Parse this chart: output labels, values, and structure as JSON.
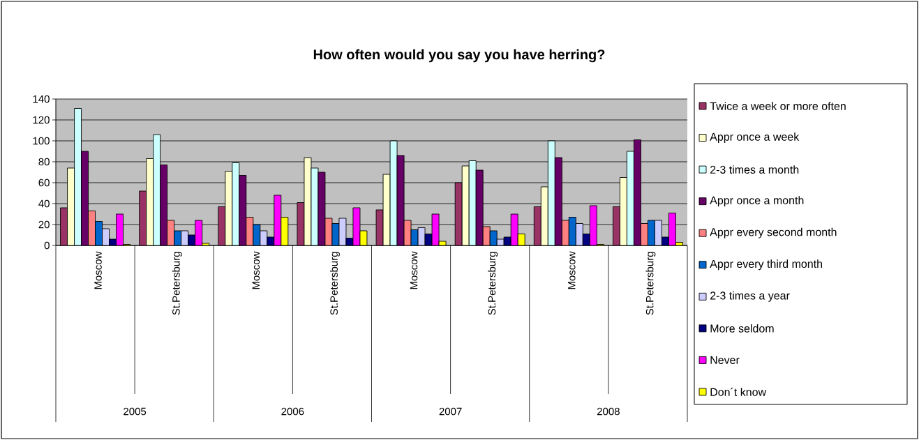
{
  "chart_data": {
    "type": "bar",
    "title": "How often would you say you have herring?",
    "categories": [
      "Moscow",
      "St.Petersburg",
      "Moscow",
      "St.Petersburg",
      "Moscow",
      "St.Petersburg",
      "Moscow",
      "St.Petersburg"
    ],
    "annotations": [
      "2005",
      "2006",
      "2007",
      "2008"
    ],
    "ylim": [
      0,
      140
    ],
    "yticks": [
      0,
      20,
      40,
      60,
      80,
      100,
      120,
      140
    ],
    "grid": "y",
    "legend": "right",
    "series": [
      {
        "name": "Twice a week or more often",
        "color": "#993366",
        "values": [
          36,
          52,
          37,
          41,
          34,
          60,
          37,
          37
        ]
      },
      {
        "name": "Appr once a week",
        "color": "#ffffcc",
        "values": [
          74,
          83,
          71,
          84,
          68,
          76,
          56,
          65
        ]
      },
      {
        "name": "2-3 times a month",
        "color": "#ccffff",
        "values": [
          131,
          106,
          79,
          74,
          100,
          81,
          100,
          90
        ]
      },
      {
        "name": "Appr once a month",
        "color": "#660066",
        "values": [
          90,
          77,
          67,
          70,
          86,
          72,
          84,
          101
        ]
      },
      {
        "name": "Appr every second month",
        "color": "#ff8080",
        "values": [
          33,
          24,
          27,
          26,
          24,
          18,
          24,
          21
        ]
      },
      {
        "name": "Appr every third month",
        "color": "#0066cc",
        "values": [
          23,
          14,
          20,
          21,
          15,
          14,
          27,
          24
        ]
      },
      {
        "name": "2-3 times a year",
        "color": "#ccccff",
        "values": [
          16,
          14,
          14,
          26,
          17,
          6,
          21,
          24
        ]
      },
      {
        "name": "More seldom",
        "color": "#000080",
        "values": [
          6,
          10,
          8,
          7,
          11,
          8,
          11,
          8
        ]
      },
      {
        "name": "Never",
        "color": "#ff00ff",
        "values": [
          30,
          24,
          48,
          36,
          30,
          30,
          38,
          31
        ]
      },
      {
        "name": "Don´t know",
        "color": "#ffff00",
        "values": [
          1,
          2,
          27,
          14,
          4,
          11,
          1,
          3
        ]
      }
    ]
  }
}
